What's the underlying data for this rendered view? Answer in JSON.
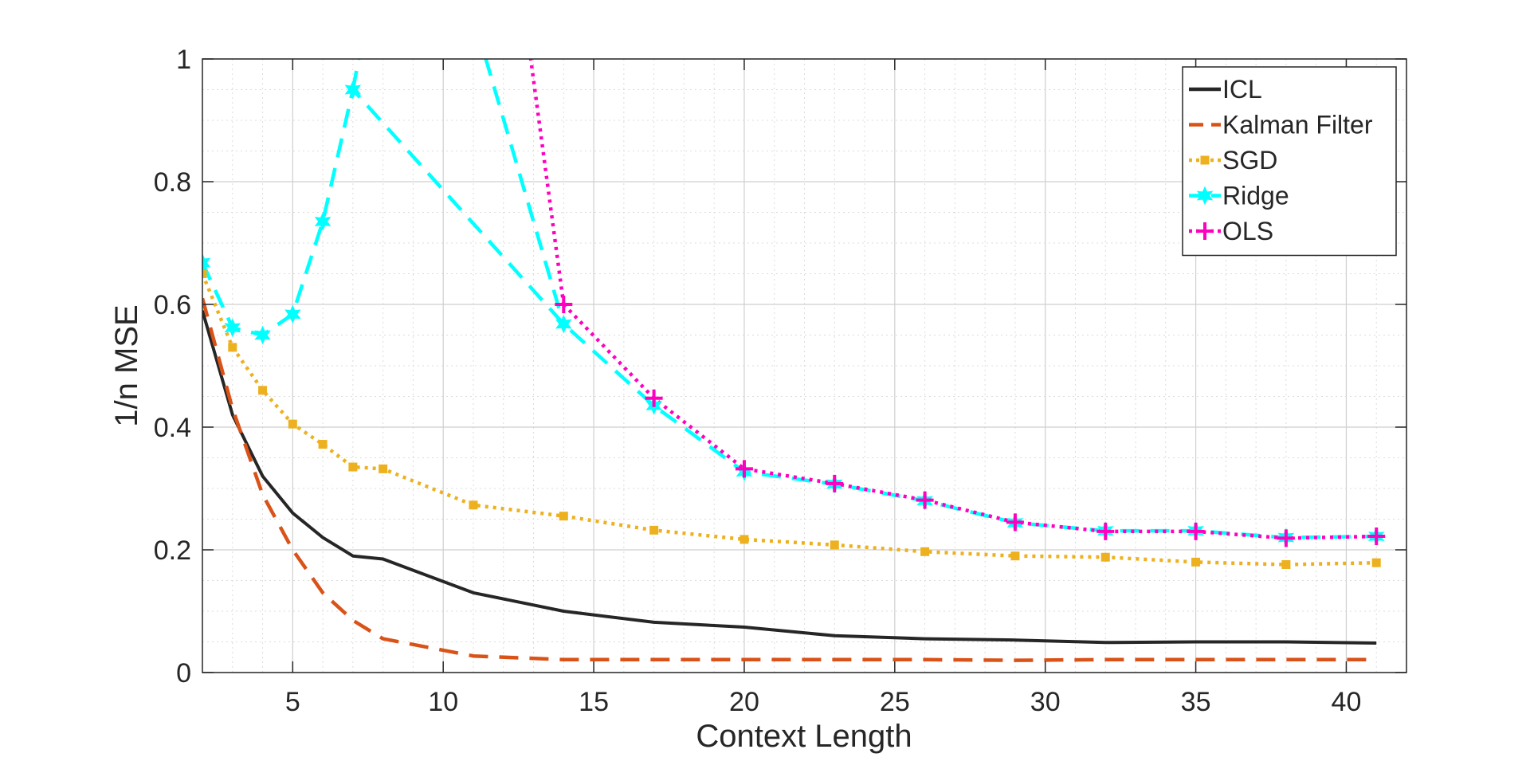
{
  "chart_data": {
    "type": "line",
    "title": "",
    "xlabel": "Context Length",
    "ylabel": "1/n MSE",
    "xlim": [
      2,
      42
    ],
    "ylim": [
      0,
      1
    ],
    "xticks": [
      5,
      10,
      15,
      20,
      25,
      30,
      35,
      40
    ],
    "yticks": [
      0,
      0.2,
      0.4,
      0.6,
      0.8,
      1
    ],
    "xtick_labels": [
      "5",
      "10",
      "15",
      "20",
      "25",
      "30",
      "35",
      "40"
    ],
    "ytick_labels": [
      "0",
      "0.2",
      "0.4",
      "0.6",
      "0.8",
      "1"
    ],
    "grid": true,
    "minor_grid": true,
    "legend_position": "top-right",
    "series": [
      {
        "name": "ICL",
        "color": "#262626",
        "line_style": "solid",
        "marker": "none",
        "x": [
          2,
          3,
          4,
          5,
          6,
          7,
          8,
          11,
          14,
          17,
          20,
          23,
          26,
          29,
          32,
          35,
          38,
          41
        ],
        "y": [
          0.59,
          0.42,
          0.32,
          0.26,
          0.22,
          0.19,
          0.185,
          0.13,
          0.1,
          0.082,
          0.074,
          0.06,
          0.055,
          0.053,
          0.049,
          0.05,
          0.05,
          0.048
        ]
      },
      {
        "name": "Kalman Filter",
        "color": "#D95319",
        "line_style": "dashed",
        "marker": "none",
        "x": [
          2,
          3,
          4,
          5,
          6,
          7,
          8,
          11,
          14,
          17,
          20,
          23,
          26,
          29,
          32,
          35,
          38,
          41
        ],
        "y": [
          0.61,
          0.43,
          0.29,
          0.2,
          0.13,
          0.085,
          0.055,
          0.027,
          0.021,
          0.021,
          0.021,
          0.021,
          0.021,
          0.02,
          0.021,
          0.021,
          0.021,
          0.021
        ]
      },
      {
        "name": "SGD",
        "color": "#EDB120",
        "line_style": "dotted",
        "marker": "square",
        "x": [
          2,
          3,
          4,
          5,
          6,
          7,
          8,
          11,
          14,
          17,
          20,
          23,
          26,
          29,
          32,
          35,
          38,
          41
        ],
        "y": [
          0.65,
          0.53,
          0.46,
          0.405,
          0.372,
          0.335,
          0.332,
          0.273,
          0.255,
          0.232,
          0.217,
          0.208,
          0.197,
          0.19,
          0.188,
          0.18,
          0.176,
          0.179
        ]
      },
      {
        "name": "Ridge",
        "color": "#00FFFF",
        "line_style": "dashed",
        "marker": "hexagram",
        "x": [
          2,
          3,
          4,
          5,
          6,
          7,
          14,
          17,
          20,
          23,
          26,
          29,
          32,
          35,
          38,
          41
        ],
        "y": [
          0.668,
          0.562,
          0.55,
          0.584,
          0.735,
          0.95,
          0.568,
          0.435,
          0.327,
          0.307,
          0.28,
          0.244,
          0.231,
          0.231,
          0.22,
          0.222
        ]
      },
      {
        "name": "OLS",
        "color": "#FF00BF",
        "line_style": "dotted",
        "marker": "plus",
        "x": [
          14,
          17,
          20,
          23,
          26,
          29,
          32,
          35,
          38,
          41
        ],
        "y": [
          0.6,
          0.447,
          0.332,
          0.308,
          0.281,
          0.245,
          0.23,
          0.23,
          0.219,
          0.222
        ]
      }
    ]
  }
}
